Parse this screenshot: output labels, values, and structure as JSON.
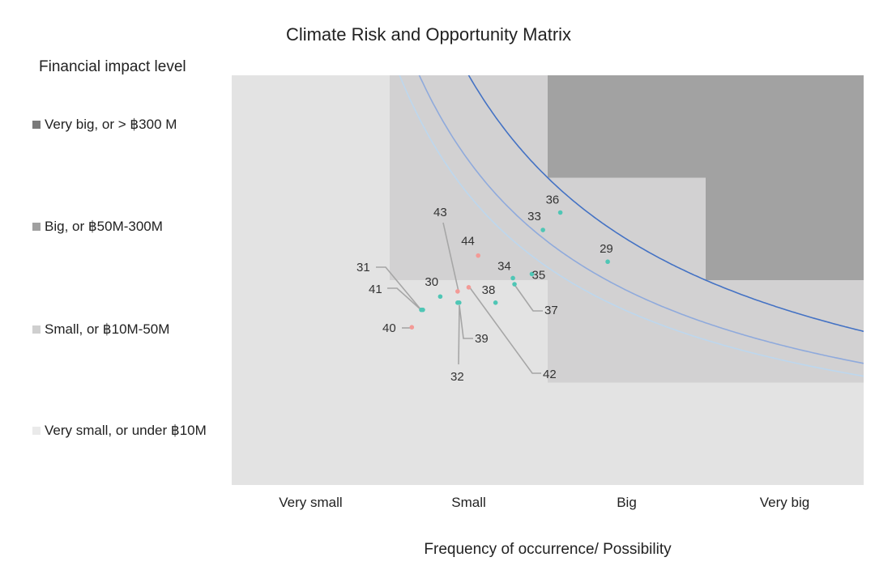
{
  "chart_data": {
    "type": "scatter",
    "title": "Climate Risk and Opportunity Matrix",
    "ylabel": "Financial impact level",
    "xlabel": "Frequency of occurrence/ Possibility",
    "x_categories": [
      "Very small",
      "Small",
      "Big",
      "Very big"
    ],
    "y_categories": [
      "Very small, or under ฿10M",
      "Small, or ฿10M-50M",
      "Big, or ฿50M-300M",
      "Very big, or > ฿300 M"
    ],
    "xlim": [
      0,
      4
    ],
    "ylim": [
      0,
      4
    ],
    "zones": [
      {
        "level": "very-small",
        "color": "#e3e3e3",
        "cells": "all"
      },
      {
        "level": "small",
        "color": "#d2d1d2",
        "x_from": 1,
        "y_from": 2,
        "extra": [
          {
            "x": [
              2,
              4
            ],
            "y": [
              1,
              2
            ]
          }
        ]
      },
      {
        "level": "big",
        "color": "#a2a2a2",
        "x_from": 2,
        "y_from": 3,
        "extra": [
          {
            "x": [
              3,
              4
            ],
            "y": [
              2,
              3
            ]
          }
        ]
      }
    ],
    "legend_colors": [
      "#eaeaea",
      "#cfcfcf",
      "#a0a0a0",
      "#7a7a7a"
    ],
    "curves": [
      {
        "color": "#4472c4",
        "k": 6.0
      },
      {
        "color": "#8faadc",
        "k": 4.75
      },
      {
        "color": "#bdd7ee",
        "k": 4.25
      }
    ],
    "points": [
      {
        "id": "29",
        "x": 2.38,
        "y": 2.18,
        "type": "opportunity"
      },
      {
        "id": "30",
        "x": 1.32,
        "y": 1.84,
        "type": "opportunity"
      },
      {
        "id": "31",
        "x": 1.2,
        "y": 1.71,
        "type": "opportunity"
      },
      {
        "id": "32",
        "x": 1.43,
        "y": 1.78,
        "type": "opportunity"
      },
      {
        "id": "33",
        "x": 1.97,
        "y": 2.49,
        "type": "opportunity"
      },
      {
        "id": "34",
        "x": 1.78,
        "y": 2.02,
        "type": "opportunity"
      },
      {
        "id": "35",
        "x": 1.9,
        "y": 2.06,
        "type": "opportunity"
      },
      {
        "id": "36",
        "x": 2.08,
        "y": 2.66,
        "type": "opportunity"
      },
      {
        "id": "37",
        "x": 1.79,
        "y": 1.96,
        "type": "opportunity"
      },
      {
        "id": "38",
        "x": 1.67,
        "y": 1.78,
        "type": "opportunity"
      },
      {
        "id": "39",
        "x": 1.44,
        "y": 1.78,
        "type": "opportunity"
      },
      {
        "id": "40",
        "x": 1.14,
        "y": 1.54,
        "type": "risk"
      },
      {
        "id": "41",
        "x": 1.21,
        "y": 1.71,
        "type": "opportunity"
      },
      {
        "id": "42",
        "x": 1.5,
        "y": 1.93,
        "type": "risk"
      },
      {
        "id": "43",
        "x": 1.43,
        "y": 1.89,
        "type": "risk"
      },
      {
        "id": "44",
        "x": 1.56,
        "y": 2.24,
        "type": "risk"
      }
    ],
    "point_colors": {
      "opportunity": "#4fc6b5",
      "risk": "#f39a96"
    },
    "leader_color": "#a6a6a6",
    "grid": false
  }
}
